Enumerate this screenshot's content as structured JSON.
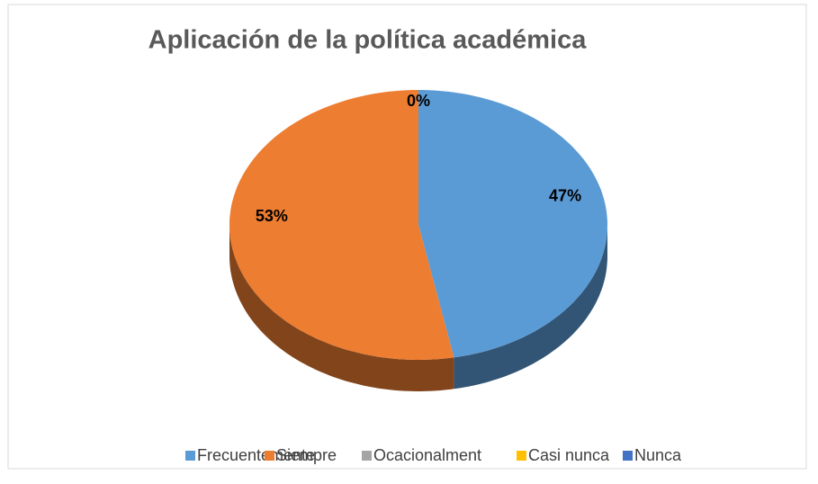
{
  "chart_data": {
    "type": "pie",
    "title": "Aplicación de la política académica",
    "categories": [
      "Frecuentemente",
      "Siempre",
      "Ocacionalment",
      "Casi nunca",
      "Nunca"
    ],
    "values": [
      47,
      53,
      0,
      0,
      0
    ],
    "value_labels": [
      "47%",
      "53%",
      "0%",
      null,
      null
    ],
    "colors": [
      "#5b9bd5",
      "#ed7d31",
      "#a5a5a5",
      "#ffc000",
      "#4472c4"
    ],
    "legend": "bottom"
  }
}
